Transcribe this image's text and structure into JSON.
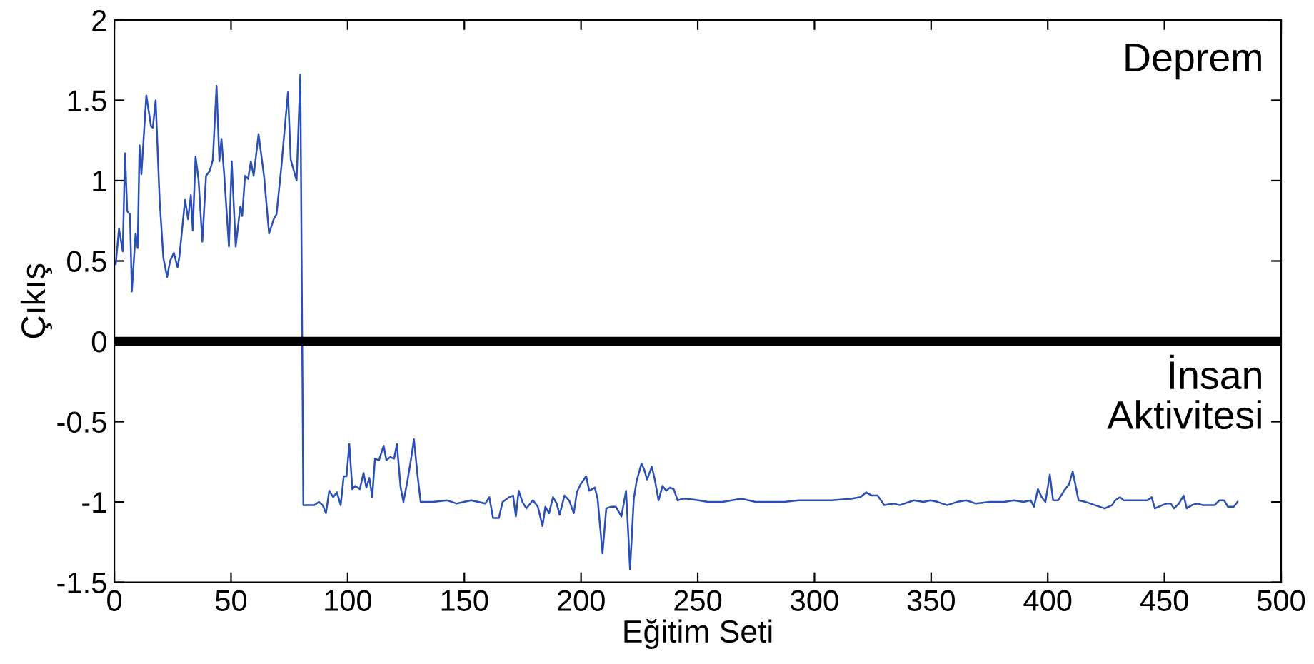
{
  "chart_data": {
    "type": "line",
    "xlabel": "Eğitim Seti",
    "ylabel": "Çıkış",
    "xlim": [
      0,
      500
    ],
    "xticks": [
      0,
      50,
      100,
      150,
      200,
      250,
      300,
      350,
      400,
      450,
      500
    ],
    "ylim": [
      -1.5,
      2
    ],
    "yticks": [
      -1.5,
      -1,
      -0.5,
      0,
      0.5,
      1,
      1.5,
      2
    ],
    "grid": false,
    "marker": "none",
    "line_style": "solid",
    "ref_lines": [
      {
        "axis": "y",
        "value": 0,
        "color": "#000000"
      }
    ],
    "annotations": [
      "Deprem",
      "İnsan Aktivitesi"
    ],
    "series": [
      {
        "color": "#2a4fb5",
        "x": [
          0.6,
          2,
          3.6,
          4.6,
          5.5,
          6.7,
          7.5,
          9.1,
          10,
          10.8,
          11.6,
          13.7,
          15.7,
          16.5,
          17.7,
          19.4,
          21,
          22.6,
          23.9,
          25.5,
          27.1,
          27.9,
          30.3,
          31.6,
          32.8,
          33.6,
          34.8,
          36.1,
          37.7,
          39.3,
          40.9,
          42.2,
          43.8,
          45,
          45.9,
          47.1,
          49.1,
          50.3,
          52,
          54,
          54.8,
          56,
          57.3,
          58.5,
          59.7,
          61.8,
          64.2,
          66.3,
          68.3,
          69.5,
          71.6,
          72.8,
          74.4,
          75.6,
          78.1,
          79.7,
          81,
          85.7,
          87.7,
          89.3,
          90.7,
          92.1,
          93.8,
          95.4,
          97,
          98.3,
          99.5,
          100.7,
          102,
          103.2,
          105.2,
          106.8,
          108,
          109.3,
          110.5,
          111.7,
          113.4,
          115.4,
          116.6,
          118.3,
          119.9,
          121.1,
          122.7,
          123.9,
          125.6,
          127.2,
          128.4,
          130,
          131.3,
          136.6,
          142.7,
          146.8,
          152.9,
          159,
          160.7,
          162.3,
          164.8,
          166.4,
          169.3,
          170.9,
          172.1,
          173.3,
          174.9,
          176.6,
          179.4,
          181.5,
          183.5,
          184.7,
          186.3,
          188,
          189.6,
          190.8,
          192.9,
          194.9,
          196.9,
          198.2,
          199.8,
          202.2,
          203.5,
          205.9,
          207.1,
          209.2,
          210.8,
          212.8,
          214.9,
          217.3,
          219.3,
          221,
          222.6,
          223.8,
          225.9,
          227.1,
          228.3,
          230.3,
          231.6,
          233.2,
          234.9,
          236.5,
          238.1,
          239.7,
          241.4,
          243.4,
          245.4,
          250.3,
          254.4,
          260.5,
          264.6,
          268.7,
          274.8,
          278.9,
          287,
          293.2,
          299.3,
          307.5,
          315.7,
          319.7,
          322.2,
          324.6,
          327.1,
          329.9,
          334,
          336.5,
          342.6,
          346.7,
          349.8,
          352.8,
          356.9,
          361,
          365.1,
          369.2,
          375.3,
          381.4,
          385.5,
          389.6,
          392.7,
          394.1,
          395.8,
          397.4,
          399,
          400.9,
          402.3,
          404.4,
          407,
          409.1,
          410.7,
          413.2,
          416.3,
          420.3,
          424.4,
          427.5,
          428.9,
          431,
          432.6,
          436.7,
          442.8,
          444.5,
          445.9,
          449,
          451,
          452.7,
          454.1,
          456.2,
          458.2,
          459.6,
          461.7,
          464.3,
          466.4,
          469.4,
          471.5,
          473.5,
          475.6,
          477.2,
          479.7,
          481.3
        ],
        "values": [
          0.48,
          0.7,
          0.56,
          1.17,
          0.81,
          0.79,
          0.31,
          0.67,
          0.58,
          1.22,
          1.04,
          1.53,
          1.34,
          1.33,
          1.5,
          0.88,
          0.52,
          0.4,
          0.5,
          0.55,
          0.46,
          0.53,
          0.88,
          0.76,
          0.91,
          0.69,
          1.15,
          1.0,
          0.62,
          1.03,
          1.06,
          1.13,
          1.59,
          1.12,
          1.26,
          1.03,
          0.59,
          1.12,
          0.59,
          0.84,
          0.78,
          1.03,
          1.01,
          1.12,
          1.03,
          1.29,
          1.02,
          0.67,
          0.76,
          0.79,
          1.09,
          1.29,
          1.55,
          1.13,
          1.0,
          1.66,
          -1.02,
          -1.02,
          -1.0,
          -1.02,
          -1.07,
          -0.93,
          -0.97,
          -0.94,
          -1.02,
          -0.84,
          -0.84,
          -0.64,
          -0.92,
          -0.9,
          -0.92,
          -0.82,
          -0.91,
          -0.85,
          -0.97,
          -0.73,
          -0.74,
          -0.65,
          -0.74,
          -0.72,
          -0.73,
          -0.64,
          -0.91,
          -1.0,
          -0.87,
          -0.73,
          -0.61,
          -0.84,
          -1.0,
          -1.0,
          -0.99,
          -1.01,
          -0.99,
          -1.01,
          -0.97,
          -1.1,
          -1.1,
          -1.0,
          -0.97,
          -0.96,
          -1.09,
          -0.93,
          -1.0,
          -1.04,
          -0.99,
          -1.03,
          -1.15,
          -1.03,
          -1.07,
          -0.97,
          -1.01,
          -1.08,
          -0.96,
          -0.99,
          -1.07,
          -0.94,
          -0.89,
          -0.84,
          -0.93,
          -0.91,
          -0.98,
          -1.32,
          -1.04,
          -1.03,
          -1.03,
          -1.09,
          -0.93,
          -1.42,
          -0.98,
          -0.87,
          -0.76,
          -0.8,
          -0.86,
          -0.78,
          -0.86,
          -0.99,
          -0.9,
          -0.93,
          -0.91,
          -0.92,
          -0.99,
          -0.98,
          -0.98,
          -0.99,
          -1.0,
          -1.0,
          -0.99,
          -0.98,
          -1.0,
          -1.0,
          -1.0,
          -0.99,
          -0.99,
          -0.99,
          -0.98,
          -0.97,
          -0.94,
          -0.96,
          -0.96,
          -1.02,
          -1.01,
          -1.02,
          -0.99,
          -1.0,
          -0.99,
          -1.0,
          -1.02,
          -1.0,
          -0.99,
          -1.01,
          -1.0,
          -1.0,
          -0.99,
          -1.0,
          -0.99,
          -1.03,
          -0.92,
          -0.97,
          -1.0,
          -0.83,
          -0.99,
          -0.99,
          -0.93,
          -0.89,
          -0.81,
          -0.99,
          -1.0,
          -1.02,
          -1.04,
          -1.02,
          -0.99,
          -0.97,
          -0.99,
          -0.99,
          -0.99,
          -0.97,
          -1.04,
          -1.02,
          -1.01,
          -1.01,
          -1.04,
          -1.01,
          -0.96,
          -1.04,
          -1.02,
          -1.01,
          -1.02,
          -1.02,
          -1.02,
          -0.99,
          -0.99,
          -1.03,
          -1.03,
          -1.0
        ]
      }
    ]
  }
}
